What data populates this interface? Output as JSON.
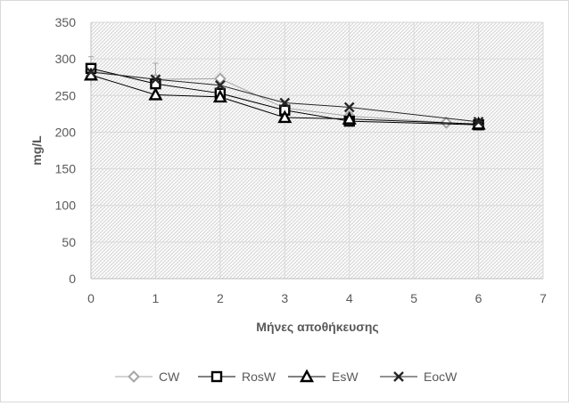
{
  "chart_data": {
    "type": "line",
    "title": "",
    "xlabel": "Μήνες αποθήκευσης",
    "ylabel": "mg/L",
    "xlim": [
      0,
      7
    ],
    "ylim": [
      0,
      350
    ],
    "x_ticks": [
      0,
      1,
      2,
      3,
      4,
      5,
      6,
      7
    ],
    "y_ticks": [
      0,
      50,
      100,
      150,
      200,
      250,
      300,
      350
    ],
    "grid": true,
    "plot_background": "hatched",
    "legend": "bottom",
    "series": [
      {
        "name": "CW",
        "marker": "diamond",
        "color": "#a6a6a6",
        "x": [
          0,
          1,
          2,
          3,
          4,
          5.5,
          6
        ],
        "y": [
          283,
          272,
          273,
          233,
          222,
          213,
          211
        ],
        "error": [
          20,
          22,
          5,
          6,
          5,
          3,
          3
        ]
      },
      {
        "name": "RosW",
        "marker": "square",
        "color": "#000000",
        "x": [
          0,
          1,
          2,
          3,
          4,
          6
        ],
        "y": [
          287,
          266,
          253,
          230,
          215,
          210
        ]
      },
      {
        "name": "EsW",
        "marker": "triangle",
        "color": "#000000",
        "x": [
          0,
          1,
          2,
          3,
          4,
          6
        ],
        "y": [
          278,
          251,
          248,
          220,
          218,
          211
        ]
      },
      {
        "name": "EocW",
        "marker": "x",
        "color": "#262626",
        "x": [
          0,
          1,
          2,
          3,
          4,
          6
        ],
        "y": [
          282,
          272,
          264,
          240,
          234,
          214
        ]
      }
    ]
  }
}
